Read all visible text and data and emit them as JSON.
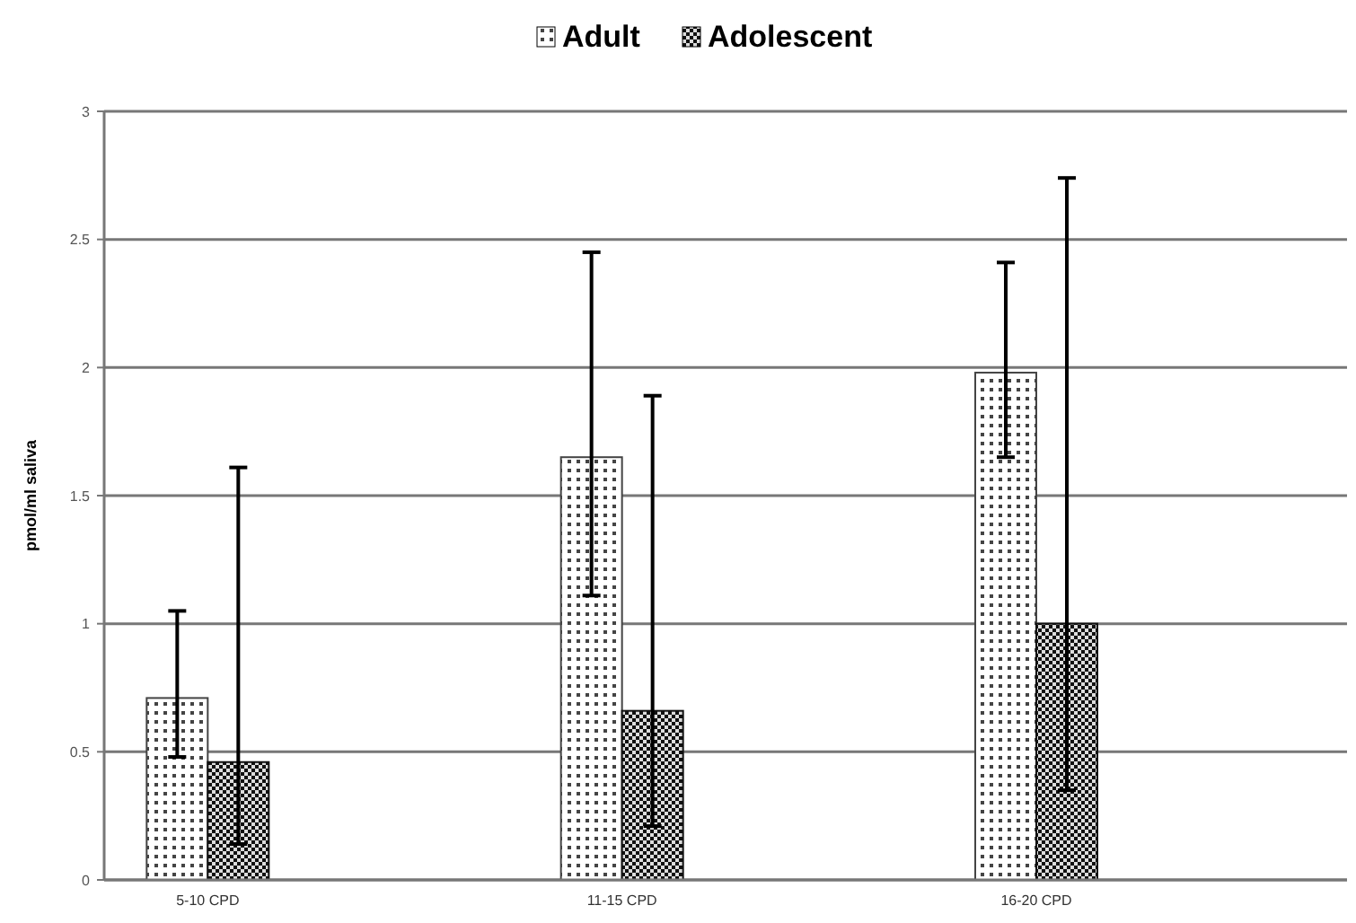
{
  "chart_data": {
    "type": "bar",
    "ylabel": "pmol/ml saliva",
    "categories": [
      "5-10 CPD",
      "11-15 CPD",
      "16-20 CPD"
    ],
    "series": [
      {
        "name": "Adult",
        "color": "#444444",
        "values": [
          0.71,
          1.65,
          1.98
        ],
        "errors": [
          [
            0.48,
            1.05
          ],
          [
            1.11,
            2.45
          ],
          [
            1.65,
            2.41
          ]
        ]
      },
      {
        "name": "Adolescent",
        "color": "#111111",
        "values": [
          0.46,
          0.66,
          1.0
        ],
        "errors": [
          [
            0.14,
            1.61
          ],
          [
            0.21,
            1.89
          ],
          [
            0.35,
            2.74
          ]
        ]
      }
    ],
    "ylim": [
      0,
      3
    ],
    "yticks": [
      0,
      0.5,
      1,
      1.5,
      2,
      2.5,
      3
    ],
    "grid": "y",
    "legend": "top"
  }
}
